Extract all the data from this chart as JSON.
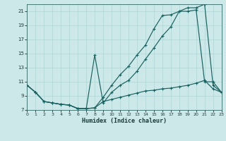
{
  "xlabel": "Humidex (Indice chaleur)",
  "xlim": [
    0,
    23
  ],
  "ylim": [
    7,
    22
  ],
  "xticks": [
    0,
    1,
    2,
    3,
    4,
    5,
    6,
    7,
    8,
    9,
    10,
    11,
    12,
    13,
    14,
    15,
    16,
    17,
    18,
    19,
    20,
    21,
    22,
    23
  ],
  "yticks": [
    7,
    9,
    11,
    13,
    15,
    17,
    19,
    21
  ],
  "bg_color": "#cce8e8",
  "grid_color": "#b0d4d4",
  "line_color": "#1a6060",
  "curve1_x": [
    0,
    1,
    2,
    3,
    4,
    5,
    6,
    7,
    8,
    9,
    10,
    11,
    12,
    13,
    14,
    15,
    16,
    17,
    18,
    19,
    20,
    21,
    22,
    23
  ],
  "curve1_y": [
    10.5,
    9.5,
    8.2,
    8.0,
    7.8,
    7.7,
    7.2,
    7.2,
    7.3,
    8.8,
    10.5,
    12.0,
    13.2,
    14.8,
    16.2,
    18.5,
    20.4,
    20.5,
    21.0,
    21.5,
    21.5,
    22.0,
    10.5,
    9.5
  ],
  "curve2_x": [
    0,
    1,
    2,
    3,
    4,
    5,
    6,
    7,
    8,
    9,
    10,
    11,
    12,
    13,
    14,
    15,
    16,
    17,
    18,
    19,
    20,
    21,
    22,
    23
  ],
  "curve2_y": [
    10.5,
    9.5,
    8.2,
    8.0,
    7.8,
    7.7,
    7.2,
    7.2,
    14.8,
    8.0,
    9.5,
    10.5,
    11.2,
    12.5,
    14.2,
    15.8,
    17.5,
    18.8,
    21.0,
    21.0,
    21.2,
    11.0,
    11.0,
    9.5
  ],
  "curve3_x": [
    0,
    1,
    2,
    3,
    4,
    5,
    6,
    7,
    8,
    9,
    10,
    11,
    12,
    13,
    14,
    15,
    16,
    17,
    18,
    19,
    20,
    21,
    22,
    23
  ],
  "curve3_y": [
    10.5,
    9.5,
    8.2,
    8.0,
    7.8,
    7.7,
    7.2,
    7.2,
    7.3,
    8.2,
    8.5,
    8.8,
    9.1,
    9.4,
    9.7,
    9.8,
    10.0,
    10.1,
    10.3,
    10.5,
    10.8,
    11.2,
    10.0,
    9.5
  ]
}
